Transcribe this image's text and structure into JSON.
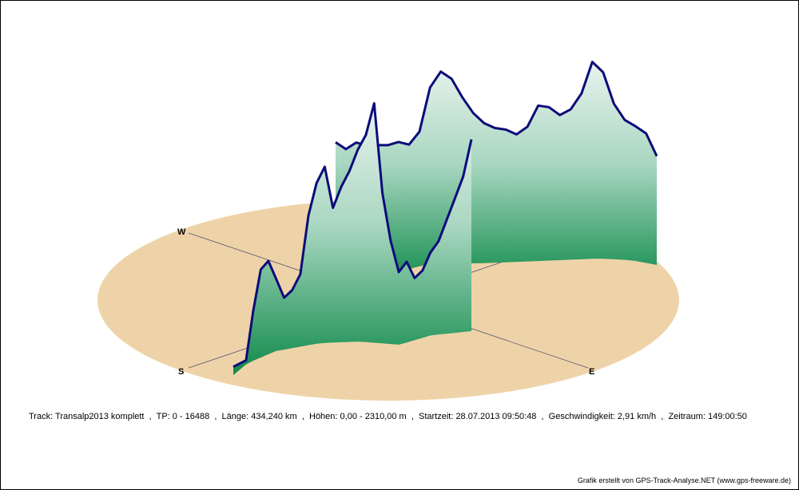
{
  "caption": {
    "track": "Track: Transalp2013 komplett",
    "points": "TP: 0 - 16488",
    "length": "Länge: 434,240 km",
    "heights": "Höhen: 0,00 - 2310,00 m",
    "start": "Startzeit: 28.07.2013 09:50:48",
    "speed": "Geschwindigkeit: 2,91 km/h",
    "duration": "Zeitraum: 149:00:50",
    "separator": "  ,  "
  },
  "credit": "Grafik erstellt von GPS-Track-Analyse.NET (www.gps-freeware.de)",
  "compass": {
    "west": "W",
    "south": "S",
    "east": "E"
  },
  "colors": {
    "ground": "#efd3a8",
    "curtain_top": "#e9f3ef",
    "curtain_bottom": "#0f8a4a",
    "track_line": "#0c0c7a",
    "axis_line": "#555577"
  },
  "chart_data": {
    "type": "area",
    "title": "",
    "xlabel": "",
    "ylabel": "",
    "ylim": [
      0,
      2310
    ],
    "elevation_unit": "m",
    "profile_segments": [
      {
        "name": "",
        "elevations_m": [
          80,
          60,
          40,
          480,
          850,
          900,
          700,
          500,
          560,
          700,
          1250,
          1550,
          1700,
          1300,
          1500,
          1650,
          1850,
          2000,
          2310,
          1450,
          1000,
          700,
          780,
          600,
          650,
          800,
          900,
          1100,
          1300,
          1500,
          1850
        ]
      },
      {
        "name": "",
        "elevations_m": [
          1400,
          1300,
          1330,
          1280,
          1260,
          1240,
          1250,
          1200,
          1300,
          1700,
          1850,
          1780,
          1600,
          1450,
          1350,
          1300,
          1280,
          1230,
          1300,
          1500,
          1480,
          1400,
          1450,
          1600,
          1900,
          1800,
          1500,
          1350,
          1300,
          1250,
          1050
        ]
      }
    ]
  }
}
